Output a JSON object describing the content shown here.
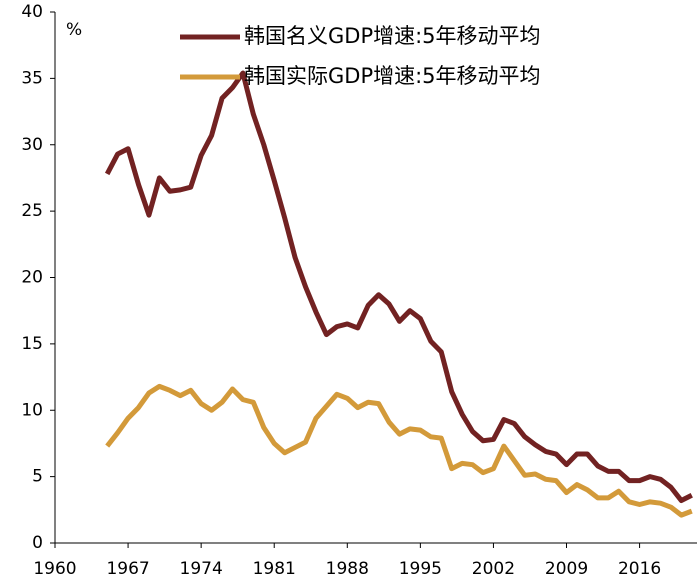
{
  "chart_data": {
    "type": "line",
    "y_unit": "%",
    "x": [
      1965,
      1966,
      1967,
      1968,
      1969,
      1970,
      1971,
      1972,
      1973,
      1974,
      1975,
      1976,
      1977,
      1978,
      1979,
      1980,
      1981,
      1982,
      1983,
      1984,
      1985,
      1986,
      1987,
      1988,
      1989,
      1990,
      1991,
      1992,
      1993,
      1994,
      1995,
      1996,
      1997,
      1998,
      1999,
      2000,
      2001,
      2002,
      2003,
      2004,
      2005,
      2006,
      2007,
      2008,
      2009,
      2010,
      2011,
      2012,
      2013,
      2014,
      2015,
      2016,
      2017,
      2018,
      2019,
      2020,
      2021
    ],
    "series": [
      {
        "name": "韩国名义GDP增速:5年移动平均",
        "color": "#722222",
        "values": [
          27.8,
          29.3,
          29.7,
          27.0,
          24.7,
          27.5,
          26.5,
          26.6,
          26.8,
          29.2,
          30.7,
          33.5,
          34.3,
          35.4,
          32.3,
          30.0,
          27.3,
          24.5,
          21.5,
          19.3,
          17.4,
          15.7,
          16.3,
          16.5,
          16.2,
          17.9,
          18.7,
          18.0,
          16.7,
          17.5,
          16.9,
          15.2,
          14.4,
          11.4,
          9.7,
          8.4,
          7.7,
          7.8,
          9.3,
          9.0,
          8.0,
          7.4,
          6.9,
          6.7,
          5.9,
          6.7,
          6.7,
          5.8,
          5.4,
          5.4,
          4.7,
          4.7,
          5.0,
          4.8,
          4.2,
          3.2,
          3.6
        ]
      },
      {
        "name": "韩国实际GDP增速:5年移动平均",
        "color": "#d39a3a",
        "values": [
          7.3,
          8.3,
          9.4,
          10.2,
          11.3,
          11.8,
          11.5,
          11.1,
          11.5,
          10.5,
          10.0,
          10.6,
          11.6,
          10.8,
          10.6,
          8.7,
          7.5,
          6.8,
          7.2,
          7.6,
          9.4,
          10.3,
          11.2,
          10.9,
          10.2,
          10.6,
          10.5,
          9.1,
          8.2,
          8.6,
          8.5,
          8.0,
          7.9,
          5.6,
          6.0,
          5.9,
          5.3,
          5.6,
          7.3,
          6.2,
          5.1,
          5.2,
          4.8,
          4.7,
          3.8,
          4.4,
          4.0,
          3.4,
          3.4,
          3.9,
          3.1,
          2.9,
          3.1,
          3.0,
          2.7,
          2.1,
          2.4
        ]
      }
    ],
    "xlim": [
      1960,
      2021.5
    ],
    "xticks": [
      1960,
      1967,
      1974,
      1981,
      1988,
      1995,
      2002,
      2009,
      2016
    ],
    "ylim": [
      0,
      40
    ],
    "yticks": [
      0,
      5,
      10,
      15,
      20,
      25,
      30,
      35,
      40
    ]
  }
}
